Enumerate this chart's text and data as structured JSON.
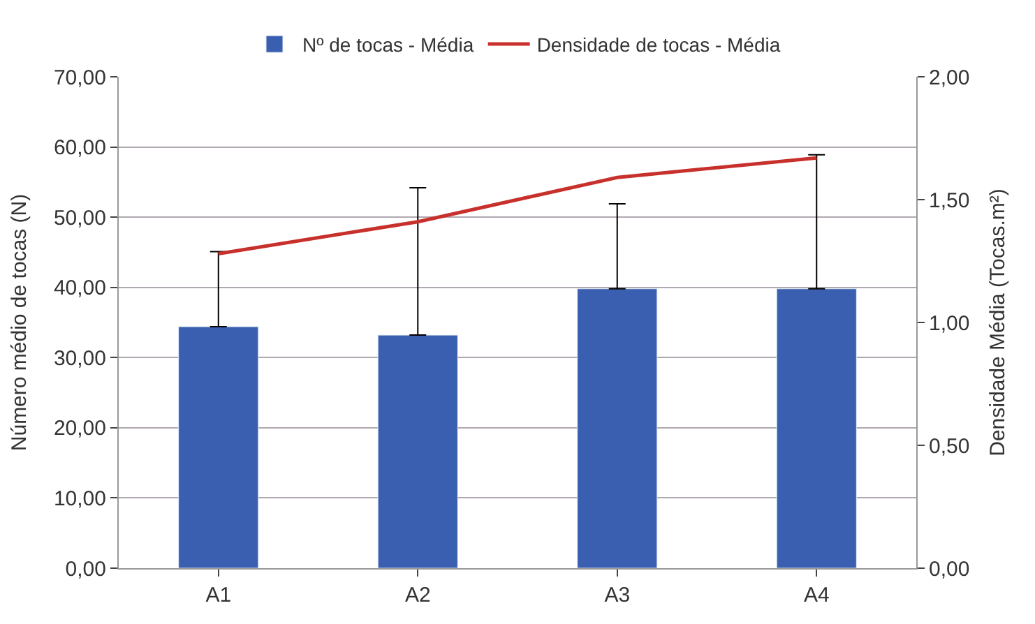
{
  "chart_data": {
    "type": "bar",
    "categories": [
      "A1",
      "A2",
      "A3",
      "A4"
    ],
    "ylabel": "Número médio de tocas (N)",
    "y2label": "Densidade Média (Tocas.m²)",
    "series": [
      {
        "name": "Nº de tocas - Média",
        "color": "#3a5fb0",
        "values": [
          34.4,
          33.2,
          39.8,
          39.8
        ],
        "errors": [
          [
            34.4,
            45.1
          ],
          [
            33.2,
            54.2
          ],
          [
            39.8,
            51.9
          ],
          [
            39.8,
            58.9
          ]
        ]
      },
      {
        "name": "Densidade de tocas - Média",
        "type": "line",
        "axis": "y2",
        "color": "#c8302c",
        "values": [
          1.28,
          1.41,
          1.59,
          1.67
        ]
      }
    ],
    "ylim": [
      0,
      70
    ],
    "yticks": [
      {
        "value": 0,
        "label": "0,00"
      },
      {
        "value": 10,
        "label": "10,00"
      },
      {
        "value": 20,
        "label": "20,00"
      },
      {
        "value": 30,
        "label": "30,00"
      },
      {
        "value": 40,
        "label": "40,00"
      },
      {
        "value": 50,
        "label": "50,00"
      },
      {
        "value": 60,
        "label": "60,00"
      },
      {
        "value": 70,
        "label": "70,00"
      }
    ],
    "y2lim": [
      0,
      2
    ],
    "y2ticks": [
      {
        "value": 0,
        "label": "0,00"
      },
      {
        "value": 0.5,
        "label": "0,50"
      },
      {
        "value": 1,
        "label": "1,00"
      },
      {
        "value": 1.5,
        "label": "1,50"
      },
      {
        "value": 2,
        "label": "2,00"
      }
    ],
    "grid": "y",
    "legend": "top",
    "marker": "none",
    "line_style": "solid"
  }
}
